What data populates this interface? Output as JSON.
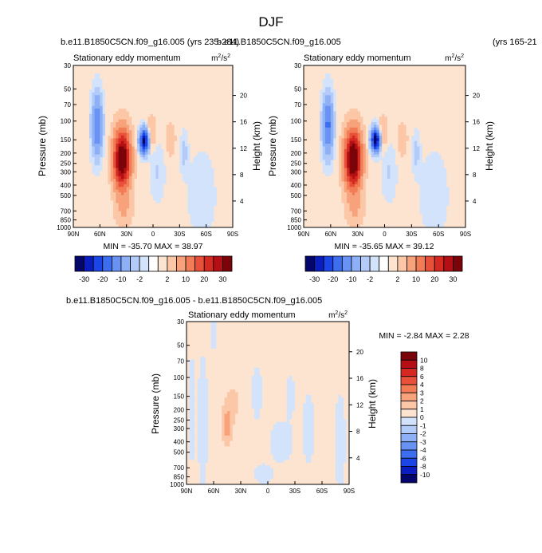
{
  "page": {
    "title": "DJF"
  },
  "chart_data": [
    {
      "type": "heatmap",
      "id": "panel1",
      "header_left": "b.e11.B1850C5CN.f09_g16.005 (yrs 235-284)",
      "header_overlap": "b.e11.B1850C5CN.f09_g16.005",
      "header_right": "(yrs 165-21",
      "subtitle": "Stationary eddy momentum",
      "units": "m²/s²",
      "units_base": "m",
      "units_sup1": "2",
      "units_mid": "/s",
      "units_sup2": "2",
      "ylabel": "Pressure (mb)",
      "ylabel_right": "Height (km)",
      "x_ticks": [
        "90N",
        "60N",
        "30N",
        "0",
        "30S",
        "60S",
        "90S"
      ],
      "x_tick_lat": [
        90,
        60,
        30,
        0,
        -30,
        -60,
        -90
      ],
      "y_ticks": [
        "30",
        "50",
        "70",
        "100",
        "150",
        "200",
        "250",
        "300",
        "400",
        "500",
        "700",
        "850",
        "1000"
      ],
      "y_tick_p": [
        30,
        50,
        70,
        100,
        150,
        200,
        250,
        300,
        400,
        500,
        700,
        850,
        1000
      ],
      "height_ticks": [
        "20",
        "16",
        "12",
        "8",
        "4"
      ],
      "height_tick_km": [
        20,
        16,
        12,
        8,
        4
      ],
      "xlim": [
        90,
        -90
      ],
      "ylim": [
        1000,
        30
      ],
      "stats": "MIN = -35.70   MAX = 38.97",
      "min": -35.7,
      "max": 38.97,
      "features": [
        {
          "lat": 63,
          "p": 110,
          "a": -16,
          "wl": 6,
          "wp": 0.65
        },
        {
          "lat": 35,
          "p": 230,
          "a": 38,
          "wl": 9,
          "wp": 0.6
        },
        {
          "lat": 33,
          "p": 700,
          "a": 4,
          "wl": 10,
          "wp": 0.35
        },
        {
          "lat": 10,
          "p": 155,
          "a": -34,
          "wl": 5,
          "wp": 0.25
        },
        {
          "lat": 2,
          "p": 130,
          "a": 5,
          "wl": 5,
          "wp": 0.35
        },
        {
          "lat": -5,
          "p": 300,
          "a": -3,
          "wl": 8,
          "wp": 0.6
        },
        {
          "lat": -20,
          "p": 150,
          "a": 3,
          "wl": 6,
          "wp": 0.4
        },
        {
          "lat": -35,
          "p": 200,
          "a": -4,
          "wl": 4,
          "wp": 0.4
        },
        {
          "lat": -55,
          "p": 500,
          "a": -1.5,
          "wl": 20,
          "wp": 1.2
        }
      ]
    },
    {
      "type": "heatmap",
      "id": "panel2",
      "subtitle": "Stationary eddy momentum",
      "units": "m²/s²",
      "units_base": "m",
      "units_sup1": "2",
      "units_mid": "/s",
      "units_sup2": "2",
      "ylabel": "Pressure (mb)",
      "ylabel_right": "Height (km)",
      "x_ticks": [
        "90N",
        "60N",
        "30N",
        "0",
        "30S",
        "60S",
        "90S"
      ],
      "y_ticks": [
        "30",
        "50",
        "70",
        "100",
        "150",
        "200",
        "250",
        "300",
        "400",
        "500",
        "700",
        "850",
        "1000"
      ],
      "height_ticks": [
        "20",
        "16",
        "12",
        "8",
        "4"
      ],
      "stats": "MIN = -35.65   MAX = 39.12",
      "min": -35.65,
      "max": 39.12,
      "features": [
        {
          "lat": 63,
          "p": 110,
          "a": -17,
          "wl": 6,
          "wp": 0.65
        },
        {
          "lat": 35,
          "p": 230,
          "a": 39,
          "wl": 9,
          "wp": 0.6
        },
        {
          "lat": 33,
          "p": 700,
          "a": 4,
          "wl": 10,
          "wp": 0.35
        },
        {
          "lat": 10,
          "p": 150,
          "a": -35,
          "wl": 5,
          "wp": 0.25
        },
        {
          "lat": 2,
          "p": 130,
          "a": 5,
          "wl": 5,
          "wp": 0.35
        },
        {
          "lat": -5,
          "p": 300,
          "a": -3,
          "wl": 8,
          "wp": 0.6
        },
        {
          "lat": -20,
          "p": 150,
          "a": 3,
          "wl": 6,
          "wp": 0.4
        },
        {
          "lat": -35,
          "p": 200,
          "a": -4,
          "wl": 4,
          "wp": 0.4
        },
        {
          "lat": -55,
          "p": 500,
          "a": -1.5,
          "wl": 20,
          "wp": 1.2
        }
      ]
    },
    {
      "type": "heatmap",
      "id": "panel3",
      "header_left": "b.e11.B1850C5CN.f09_g16.005 - b.e11.B1850C5CN.f09_g16.005",
      "subtitle": "Stationary eddy momentum",
      "units": "m²/s²",
      "units_base": "m",
      "units_sup1": "2",
      "units_mid": "/s",
      "units_sup2": "2",
      "ylabel": "Pressure (mb)",
      "ylabel_right": "Height (km)",
      "x_ticks": [
        "90N",
        "60N",
        "30N",
        "0",
        "30S",
        "60S",
        "90S"
      ],
      "y_ticks": [
        "30",
        "50",
        "70",
        "100",
        "150",
        "200",
        "250",
        "300",
        "400",
        "500",
        "700",
        "850",
        "1000"
      ],
      "height_ticks": [
        "20",
        "16",
        "12",
        "8",
        "4"
      ],
      "stats": "MIN =  -2.84   MAX =   2.28",
      "min": -2.84,
      "max": 2.28,
      "features": [
        {
          "lat": 45,
          "p": 280,
          "a": 2.2,
          "wl": 6,
          "wp": 0.4
        },
        {
          "lat": 38,
          "p": 170,
          "a": 1.0,
          "wl": 9,
          "wp": 0.4
        },
        {
          "lat": 72,
          "p": 250,
          "a": -1.4,
          "wl": 5,
          "wp": 1.2
        },
        {
          "lat": 84,
          "p": 200,
          "a": -1.0,
          "wl": 3,
          "wp": 1.2
        },
        {
          "lat": 12,
          "p": 140,
          "a": -1.3,
          "wl": 5,
          "wp": 0.5
        },
        {
          "lat": -15,
          "p": 400,
          "a": -1.2,
          "wl": 12,
          "wp": 0.4
        },
        {
          "lat": -25,
          "p": 150,
          "a": -1.1,
          "wl": 5,
          "wp": 0.4
        },
        {
          "lat": -45,
          "p": 300,
          "a": -1.1,
          "wl": 6,
          "wp": 0.7
        },
        {
          "lat": -80,
          "p": 400,
          "a": -1.0,
          "wl": 6,
          "wp": 1.0
        },
        {
          "lat": 5,
          "p": 800,
          "a": -1.1,
          "wl": 10,
          "wp": 0.2
        },
        {
          "lat": 60,
          "p": 40,
          "a": -1.0,
          "wl": 4,
          "wp": 0.3
        }
      ]
    }
  ],
  "colorbar_main": {
    "labels": [
      "-30",
      "-20",
      "-10",
      "-2",
      "2",
      "10",
      "20",
      "30"
    ],
    "levels": [
      -35,
      -30,
      -25,
      -20,
      -15,
      -10,
      -5,
      -2,
      0,
      2,
      5,
      10,
      15,
      20,
      25,
      30,
      35
    ],
    "colors": [
      "#05066b",
      "#0a1dbf",
      "#1c45e8",
      "#3d6ef0",
      "#6892f3",
      "#8eb0f6",
      "#b3cbf9",
      "#d3e3fb",
      "#ffffff",
      "#fde4d0",
      "#fbc7a7",
      "#f7a27b",
      "#f27c55",
      "#e8503a",
      "#d42a22",
      "#b40f14",
      "#7a0409"
    ]
  },
  "colorbar_diff": {
    "labels": [
      "10",
      "8",
      "6",
      "4",
      "3",
      "2",
      "1",
      "0",
      "-1",
      "-2",
      "-3",
      "-4",
      "-6",
      "-8",
      "-10"
    ],
    "levels": [
      10,
      8,
      6,
      4,
      3,
      2,
      1,
      0,
      -1,
      -2,
      -3,
      -4,
      -6,
      -8,
      -10
    ],
    "colors": [
      "#7a0409",
      "#b40f14",
      "#d42a22",
      "#e8503a",
      "#f27c55",
      "#f7a27b",
      "#fbc7a7",
      "#fde4d0",
      "#d3e3fb",
      "#b3cbf9",
      "#8eb0f6",
      "#6892f3",
      "#3d6ef0",
      "#1c45e8",
      "#0a1dbf",
      "#05066b"
    ]
  }
}
